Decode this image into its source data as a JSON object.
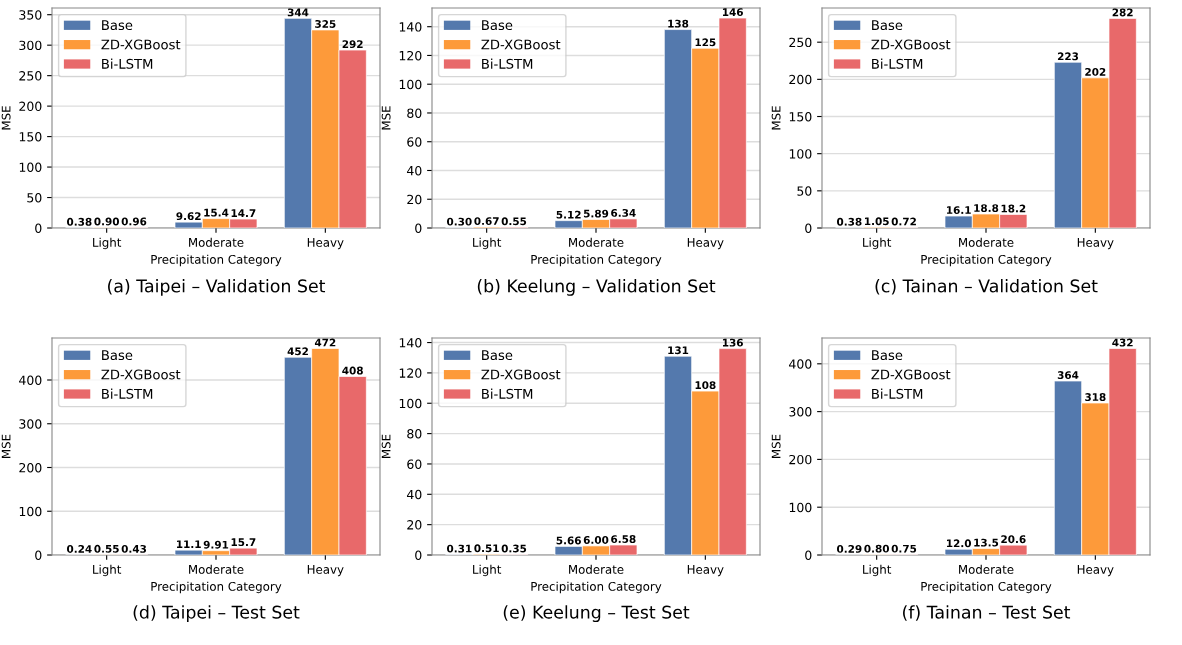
{
  "chart_data": [
    {
      "type": "bar",
      "title": "(a) Taipei – Validation Set",
      "xlabel": "Precipitation Category",
      "ylabel": "MSE",
      "categories": [
        "Light",
        "Moderate",
        "Heavy"
      ],
      "ylim": [
        0,
        361
      ],
      "yticks": [
        0,
        50,
        100,
        150,
        200,
        250,
        300,
        350
      ],
      "grid": "y",
      "legend": "top left",
      "series": [
        {
          "name": "Base",
          "color": "#5479ad",
          "values": [
            0.38,
            9.62,
            344
          ],
          "value_labels": [
            "0.38",
            "9.62",
            "344"
          ]
        },
        {
          "name": "ZD-XGBoost",
          "color": "#fd9a3a",
          "values": [
            0.9,
            15.4,
            325
          ],
          "value_labels": [
            "0.90",
            "15.4",
            "325"
          ]
        },
        {
          "name": "Bi-LSTM",
          "color": "#e8696a",
          "values": [
            0.96,
            14.7,
            292
          ],
          "value_labels": [
            "0.96",
            "14.7",
            "292"
          ]
        }
      ]
    },
    {
      "type": "bar",
      "title": "(b) Keelung – Validation Set",
      "xlabel": "Precipitation Category",
      "ylabel": "MSE",
      "categories": [
        "Light",
        "Moderate",
        "Heavy"
      ],
      "ylim": [
        0,
        153
      ],
      "yticks": [
        0,
        20,
        40,
        60,
        80,
        100,
        120,
        140
      ],
      "grid": "y",
      "legend": "top left",
      "series": [
        {
          "name": "Base",
          "color": "#5479ad",
          "values": [
            0.3,
            5.12,
            138
          ],
          "value_labels": [
            "0.30",
            "5.12",
            "138"
          ]
        },
        {
          "name": "ZD-XGBoost",
          "color": "#fd9a3a",
          "values": [
            0.67,
            5.89,
            125
          ],
          "value_labels": [
            "0.67",
            "5.89",
            "125"
          ]
        },
        {
          "name": "Bi-LSTM",
          "color": "#e8696a",
          "values": [
            0.55,
            6.34,
            146
          ],
          "value_labels": [
            "0.55",
            "6.34",
            "146"
          ]
        }
      ]
    },
    {
      "type": "bar",
      "title": "(c) Tainan – Validation Set",
      "xlabel": "Precipitation Category",
      "ylabel": "MSE",
      "categories": [
        "Light",
        "Moderate",
        "Heavy"
      ],
      "ylim": [
        0,
        296
      ],
      "yticks": [
        0,
        50,
        100,
        150,
        200,
        250
      ],
      "grid": "y",
      "legend": "top left",
      "series": [
        {
          "name": "Base",
          "color": "#5479ad",
          "values": [
            0.38,
            16.1,
            223
          ],
          "value_labels": [
            "0.38",
            "16.1",
            "223"
          ]
        },
        {
          "name": "ZD-XGBoost",
          "color": "#fd9a3a",
          "values": [
            1.05,
            18.8,
            202
          ],
          "value_labels": [
            "1.05",
            "18.8",
            "202"
          ]
        },
        {
          "name": "Bi-LSTM",
          "color": "#e8696a",
          "values": [
            0.72,
            18.2,
            282
          ],
          "value_labels": [
            "0.72",
            "18.2",
            "282"
          ]
        }
      ]
    },
    {
      "type": "bar",
      "title": "(d) Taipei – Test Set",
      "xlabel": "Precipitation Category",
      "ylabel": "MSE",
      "categories": [
        "Light",
        "Moderate",
        "Heavy"
      ],
      "ylim": [
        0,
        496
      ],
      "yticks": [
        0,
        100,
        200,
        300,
        400
      ],
      "grid": "y",
      "legend": "top left",
      "series": [
        {
          "name": "Base",
          "color": "#5479ad",
          "values": [
            0.24,
            11.1,
            452
          ],
          "value_labels": [
            "0.24",
            "11.1",
            "452"
          ]
        },
        {
          "name": "ZD-XGBoost",
          "color": "#fd9a3a",
          "values": [
            0.55,
            9.91,
            472
          ],
          "value_labels": [
            "0.55",
            "9.91",
            "472"
          ]
        },
        {
          "name": "Bi-LSTM",
          "color": "#e8696a",
          "values": [
            0.43,
            15.7,
            408
          ],
          "value_labels": [
            "0.43",
            "15.7",
            "408"
          ]
        }
      ]
    },
    {
      "type": "bar",
      "title": "(e) Keelung – Test Set",
      "xlabel": "Precipitation Category",
      "ylabel": "MSE",
      "categories": [
        "Light",
        "Moderate",
        "Heavy"
      ],
      "ylim": [
        0,
        143
      ],
      "yticks": [
        0,
        20,
        40,
        60,
        80,
        100,
        120,
        140
      ],
      "grid": "y",
      "legend": "top left",
      "series": [
        {
          "name": "Base",
          "color": "#5479ad",
          "values": [
            0.31,
            5.66,
            131
          ],
          "value_labels": [
            "0.31",
            "5.66",
            "131"
          ]
        },
        {
          "name": "ZD-XGBoost",
          "color": "#fd9a3a",
          "values": [
            0.51,
            6.0,
            108
          ],
          "value_labels": [
            "0.51",
            "6.00",
            "108"
          ]
        },
        {
          "name": "Bi-LSTM",
          "color": "#e8696a",
          "values": [
            0.35,
            6.58,
            136
          ],
          "value_labels": [
            "0.35",
            "6.58",
            "136"
          ]
        }
      ]
    },
    {
      "type": "bar",
      "title": "(f) Tainan – Test Set",
      "xlabel": "Precipitation Category",
      "ylabel": "MSE",
      "categories": [
        "Light",
        "Moderate",
        "Heavy"
      ],
      "ylim": [
        0,
        454
      ],
      "yticks": [
        0,
        100,
        200,
        300,
        400
      ],
      "grid": "y",
      "legend": "top left",
      "series": [
        {
          "name": "Base",
          "color": "#5479ad",
          "values": [
            0.29,
            12.0,
            364
          ],
          "value_labels": [
            "0.29",
            "12.0",
            "364"
          ]
        },
        {
          "name": "ZD-XGBoost",
          "color": "#fd9a3a",
          "values": [
            0.8,
            13.5,
            318
          ],
          "value_labels": [
            "0.80",
            "13.5",
            "318"
          ]
        },
        {
          "name": "Bi-LSTM",
          "color": "#e8696a",
          "values": [
            0.75,
            20.6,
            432
          ],
          "value_labels": [
            "0.75",
            "20.6",
            "432"
          ]
        }
      ]
    }
  ]
}
